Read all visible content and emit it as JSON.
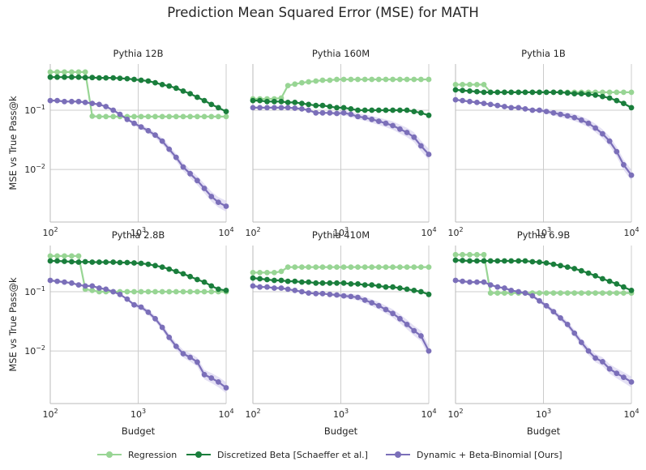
{
  "title": "Prediction Mean Squared Error (MSE) for MATH",
  "colors": {
    "regression": "#98d594",
    "discretized_beta": "#1a7e3c",
    "dynamic_beta_binomial": "#7b6fb9",
    "band": "#d9d3ef",
    "grid": "#cccccc",
    "spine": "#bbbbbb"
  },
  "legend": {
    "placement": "bottom-center",
    "items": [
      {
        "key": "regression",
        "label": "Regression"
      },
      {
        "key": "discretized_beta",
        "label": "Discretized Beta [Schaeffer et al.]"
      },
      {
        "key": "dynamic_beta_binomial",
        "label": "Dynamic + Beta-Binomial [Ours]"
      }
    ]
  },
  "chart_data": [
    {
      "type": "line",
      "title": "Pythia 12B",
      "xlabel": "",
      "ylabel": "MSE vs True Pass@k",
      "xscale": "log",
      "yscale": "log",
      "xlim": [
        100,
        10000
      ],
      "ylim": [
        0.0013,
        0.6
      ],
      "xticks": [
        "10^2",
        "10^3",
        "10^4"
      ],
      "yticks": [
        "10^-2",
        "10^-1"
      ],
      "grid": true,
      "x": [
        100,
        120,
        145,
        175,
        210,
        250,
        300,
        360,
        430,
        520,
        620,
        750,
        900,
        1080,
        1300,
        1560,
        1880,
        2250,
        2700,
        3250,
        3900,
        4700,
        5650,
        6800,
        8150,
        10000
      ],
      "series": [
        {
          "name": "Regression",
          "values": [
            0.44,
            0.44,
            0.44,
            0.44,
            0.44,
            0.44,
            0.079,
            0.078,
            0.078,
            0.078,
            0.078,
            0.078,
            0.078,
            0.078,
            0.078,
            0.078,
            0.078,
            0.078,
            0.078,
            0.078,
            0.078,
            0.078,
            0.078,
            0.078,
            0.078,
            0.078
          ]
        },
        {
          "name": "Discretized Beta [Schaeffer et al.]",
          "values": [
            0.36,
            0.36,
            0.36,
            0.36,
            0.36,
            0.355,
            0.355,
            0.35,
            0.35,
            0.35,
            0.345,
            0.34,
            0.33,
            0.32,
            0.31,
            0.29,
            0.27,
            0.255,
            0.235,
            0.21,
            0.19,
            0.165,
            0.145,
            0.125,
            0.11,
            0.095
          ]
        },
        {
          "name": "Dynamic + Beta-Binomial [Ours]",
          "values": [
            0.145,
            0.145,
            0.14,
            0.14,
            0.14,
            0.135,
            0.13,
            0.125,
            0.115,
            0.1,
            0.085,
            0.07,
            0.06,
            0.052,
            0.045,
            0.038,
            0.03,
            0.022,
            0.016,
            0.011,
            0.0085,
            0.0065,
            0.0048,
            0.0035,
            0.0028,
            0.0024
          ]
        }
      ]
    },
    {
      "type": "line",
      "title": "Pythia 160M",
      "xlabel": "",
      "ylabel": "",
      "xscale": "log",
      "yscale": "log",
      "xlim": [
        100,
        10000
      ],
      "ylim": [
        0.0013,
        0.6
      ],
      "xticks": [
        "10^2",
        "10^3",
        "10^4"
      ],
      "yticks": [],
      "grid": true,
      "x": [
        100,
        120,
        145,
        175,
        210,
        250,
        300,
        360,
        430,
        520,
        620,
        750,
        900,
        1080,
        1300,
        1560,
        1880,
        2250,
        2700,
        3250,
        3900,
        4700,
        5650,
        6800,
        8150,
        10000
      ],
      "series": [
        {
          "name": "Regression",
          "values": [
            0.155,
            0.155,
            0.155,
            0.155,
            0.16,
            0.26,
            0.275,
            0.29,
            0.3,
            0.31,
            0.32,
            0.32,
            0.33,
            0.33,
            0.33,
            0.33,
            0.33,
            0.33,
            0.33,
            0.33,
            0.33,
            0.33,
            0.33,
            0.33,
            0.33,
            0.33
          ]
        },
        {
          "name": "Discretized Beta [Schaeffer et al.]",
          "values": [
            0.145,
            0.145,
            0.14,
            0.14,
            0.14,
            0.135,
            0.135,
            0.13,
            0.125,
            0.12,
            0.12,
            0.115,
            0.11,
            0.11,
            0.105,
            0.1,
            0.1,
            0.1,
            0.1,
            0.1,
            0.1,
            0.1,
            0.1,
            0.095,
            0.09,
            0.082
          ]
        },
        {
          "name": "Dynamic + Beta-Binomial [Ours]",
          "values": [
            0.11,
            0.11,
            0.11,
            0.11,
            0.11,
            0.11,
            0.108,
            0.105,
            0.1,
            0.09,
            0.09,
            0.09,
            0.088,
            0.09,
            0.085,
            0.078,
            0.075,
            0.07,
            0.065,
            0.06,
            0.055,
            0.048,
            0.042,
            0.035,
            0.025,
            0.018
          ]
        }
      ]
    },
    {
      "type": "line",
      "title": "Pythia 1B",
      "xlabel": "",
      "ylabel": "",
      "xscale": "log",
      "yscale": "log",
      "xlim": [
        100,
        10000
      ],
      "ylim": [
        0.0013,
        0.6
      ],
      "xticks": [
        "10^2",
        "10^3",
        "10^4"
      ],
      "yticks": [],
      "grid": true,
      "x": [
        100,
        120,
        145,
        175,
        210,
        250,
        300,
        360,
        430,
        520,
        620,
        750,
        900,
        1080,
        1300,
        1560,
        1880,
        2250,
        2700,
        3250,
        3900,
        4700,
        5650,
        6800,
        8150,
        10000
      ],
      "series": [
        {
          "name": "Regression",
          "values": [
            0.27,
            0.27,
            0.27,
            0.27,
            0.27,
            0.2,
            0.2,
            0.2,
            0.2,
            0.2,
            0.2,
            0.2,
            0.2,
            0.2,
            0.2,
            0.2,
            0.2,
            0.2,
            0.2,
            0.2,
            0.2,
            0.2,
            0.2,
            0.2,
            0.2,
            0.2
          ]
        },
        {
          "name": "Discretized Beta [Schaeffer et al.]",
          "values": [
            0.22,
            0.215,
            0.21,
            0.205,
            0.2,
            0.2,
            0.2,
            0.2,
            0.2,
            0.2,
            0.2,
            0.2,
            0.2,
            0.2,
            0.2,
            0.2,
            0.195,
            0.19,
            0.19,
            0.185,
            0.18,
            0.17,
            0.16,
            0.145,
            0.13,
            0.11
          ]
        },
        {
          "name": "Dynamic + Beta-Binomial [Ours]",
          "values": [
            0.15,
            0.145,
            0.14,
            0.135,
            0.13,
            0.125,
            0.12,
            0.115,
            0.11,
            0.11,
            0.105,
            0.1,
            0.1,
            0.095,
            0.09,
            0.085,
            0.08,
            0.075,
            0.068,
            0.06,
            0.05,
            0.04,
            0.03,
            0.02,
            0.012,
            0.008
          ]
        }
      ]
    },
    {
      "type": "line",
      "title": "Pythia 2.8B",
      "xlabel": "Budget",
      "ylabel": "MSE vs True Pass@k",
      "xscale": "log",
      "yscale": "log",
      "xlim": [
        100,
        10000
      ],
      "ylim": [
        0.0013,
        0.6
      ],
      "xticks": [
        "10^2",
        "10^3",
        "10^4"
      ],
      "yticks": [
        "10^-2",
        "10^-1"
      ],
      "grid": true,
      "x": [
        100,
        120,
        145,
        175,
        210,
        250,
        300,
        360,
        430,
        520,
        620,
        750,
        900,
        1080,
        1300,
        1560,
        1880,
        2250,
        2700,
        3250,
        3900,
        4700,
        5650,
        6800,
        8150,
        10000
      ],
      "series": [
        {
          "name": "Regression",
          "values": [
            0.4,
            0.4,
            0.4,
            0.4,
            0.4,
            0.11,
            0.105,
            0.1,
            0.1,
            0.1,
            0.1,
            0.1,
            0.1,
            0.1,
            0.1,
            0.1,
            0.1,
            0.1,
            0.1,
            0.1,
            0.1,
            0.1,
            0.1,
            0.1,
            0.1,
            0.1
          ]
        },
        {
          "name": "Discretized Beta [Schaeffer et al.]",
          "values": [
            0.33,
            0.33,
            0.325,
            0.32,
            0.315,
            0.32,
            0.315,
            0.315,
            0.315,
            0.315,
            0.31,
            0.31,
            0.305,
            0.3,
            0.29,
            0.275,
            0.26,
            0.24,
            0.22,
            0.2,
            0.18,
            0.16,
            0.145,
            0.125,
            0.11,
            0.105
          ]
        },
        {
          "name": "Dynamic + Beta-Binomial [Ours]",
          "values": [
            0.155,
            0.15,
            0.145,
            0.14,
            0.13,
            0.125,
            0.125,
            0.115,
            0.11,
            0.1,
            0.09,
            0.075,
            0.06,
            0.055,
            0.045,
            0.035,
            0.025,
            0.017,
            0.012,
            0.009,
            0.0078,
            0.0065,
            0.004,
            0.0035,
            0.003,
            0.0024
          ]
        }
      ]
    },
    {
      "type": "line",
      "title": "Pythia 410M",
      "xlabel": "Budget",
      "ylabel": "",
      "xscale": "log",
      "yscale": "log",
      "xlim": [
        100,
        10000
      ],
      "ylim": [
        0.0013,
        0.6
      ],
      "xticks": [
        "10^2",
        "10^3",
        "10^4"
      ],
      "yticks": [],
      "grid": true,
      "x": [
        100,
        120,
        145,
        175,
        210,
        250,
        300,
        360,
        430,
        520,
        620,
        750,
        900,
        1080,
        1300,
        1560,
        1880,
        2250,
        2700,
        3250,
        3900,
        4700,
        5650,
        6800,
        8150,
        10000
      ],
      "series": [
        {
          "name": "Regression",
          "values": [
            0.21,
            0.21,
            0.21,
            0.21,
            0.22,
            0.26,
            0.26,
            0.26,
            0.26,
            0.26,
            0.26,
            0.26,
            0.26,
            0.26,
            0.26,
            0.26,
            0.26,
            0.26,
            0.26,
            0.26,
            0.26,
            0.26,
            0.26,
            0.26,
            0.26,
            0.26
          ]
        },
        {
          "name": "Discretized Beta [Schaeffer et al.]",
          "values": [
            0.17,
            0.165,
            0.16,
            0.155,
            0.155,
            0.15,
            0.15,
            0.145,
            0.145,
            0.14,
            0.14,
            0.14,
            0.14,
            0.14,
            0.135,
            0.135,
            0.13,
            0.13,
            0.125,
            0.12,
            0.12,
            0.115,
            0.11,
            0.105,
            0.1,
            0.09
          ]
        },
        {
          "name": "Dynamic + Beta-Binomial [Ours]",
          "values": [
            0.125,
            0.12,
            0.12,
            0.115,
            0.115,
            0.11,
            0.105,
            0.1,
            0.095,
            0.093,
            0.093,
            0.09,
            0.088,
            0.085,
            0.083,
            0.08,
            0.072,
            0.065,
            0.058,
            0.05,
            0.043,
            0.035,
            0.028,
            0.022,
            0.018,
            0.01
          ]
        }
      ]
    },
    {
      "type": "line",
      "title": "Pythia 6.9B",
      "xlabel": "Budget",
      "ylabel": "",
      "xscale": "log",
      "yscale": "log",
      "xlim": [
        100,
        10000
      ],
      "ylim": [
        0.0013,
        0.6
      ],
      "xticks": [
        "10^2",
        "10^3",
        "10^4"
      ],
      "yticks": [],
      "grid": true,
      "x": [
        100,
        120,
        145,
        175,
        210,
        250,
        300,
        360,
        430,
        520,
        620,
        750,
        900,
        1080,
        1300,
        1560,
        1880,
        2250,
        2700,
        3250,
        3900,
        4700,
        5650,
        6800,
        8150,
        10000
      ],
      "series": [
        {
          "name": "Regression",
          "values": [
            0.42,
            0.42,
            0.42,
            0.42,
            0.42,
            0.095,
            0.095,
            0.095,
            0.095,
            0.095,
            0.095,
            0.095,
            0.095,
            0.095,
            0.095,
            0.095,
            0.095,
            0.095,
            0.095,
            0.095,
            0.095,
            0.095,
            0.095,
            0.095,
            0.095,
            0.095
          ]
        },
        {
          "name": "Discretized Beta [Schaeffer et al.]",
          "values": [
            0.34,
            0.335,
            0.33,
            0.33,
            0.33,
            0.33,
            0.33,
            0.33,
            0.33,
            0.33,
            0.33,
            0.32,
            0.315,
            0.305,
            0.29,
            0.275,
            0.26,
            0.245,
            0.225,
            0.205,
            0.185,
            0.165,
            0.15,
            0.135,
            0.12,
            0.105
          ]
        },
        {
          "name": "Dynamic + Beta-Binomial [Ours]",
          "values": [
            0.155,
            0.15,
            0.145,
            0.145,
            0.145,
            0.13,
            0.12,
            0.115,
            0.105,
            0.1,
            0.095,
            0.085,
            0.07,
            0.058,
            0.046,
            0.036,
            0.028,
            0.02,
            0.014,
            0.01,
            0.0076,
            0.0066,
            0.005,
            0.0042,
            0.0036,
            0.003
          ]
        }
      ]
    }
  ]
}
